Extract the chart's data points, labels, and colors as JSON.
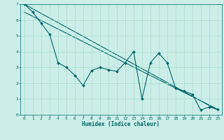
{
  "xlabel": "Humidex (Indice chaleur)",
  "ylabel": "",
  "background_color": "#cceee8",
  "grid_color": "#aaddcc",
  "line_color": "#006666",
  "xlim": [
    -0.5,
    23.5
  ],
  "ylim": [
    0,
    7
  ],
  "xticks": [
    0,
    1,
    2,
    3,
    4,
    5,
    6,
    7,
    8,
    9,
    10,
    11,
    12,
    13,
    14,
    15,
    16,
    17,
    18,
    19,
    20,
    21,
    22,
    23
  ],
  "yticks": [
    0,
    1,
    2,
    3,
    4,
    5,
    6,
    7
  ],
  "data_x": [
    0,
    1,
    2,
    3,
    4,
    5,
    6,
    7,
    8,
    9,
    10,
    11,
    12,
    13,
    14,
    15,
    16,
    17,
    18,
    19,
    20,
    21,
    22,
    23
  ],
  "data_y": [
    7.0,
    6.5,
    5.8,
    5.1,
    3.3,
    3.0,
    2.5,
    1.85,
    2.8,
    3.0,
    2.85,
    2.75,
    3.3,
    4.0,
    1.0,
    3.3,
    3.9,
    3.3,
    1.7,
    1.5,
    1.3,
    0.3,
    0.5,
    0.35
  ],
  "trend1_x": [
    0,
    23
  ],
  "trend1_y": [
    7.0,
    0.3
  ],
  "trend2_x": [
    0,
    23
  ],
  "trend2_y": [
    6.5,
    0.35
  ],
  "xlabel_fontsize": 5.5,
  "tick_fontsize": 4.5,
  "linewidth": 0.8,
  "markersize": 2.0
}
